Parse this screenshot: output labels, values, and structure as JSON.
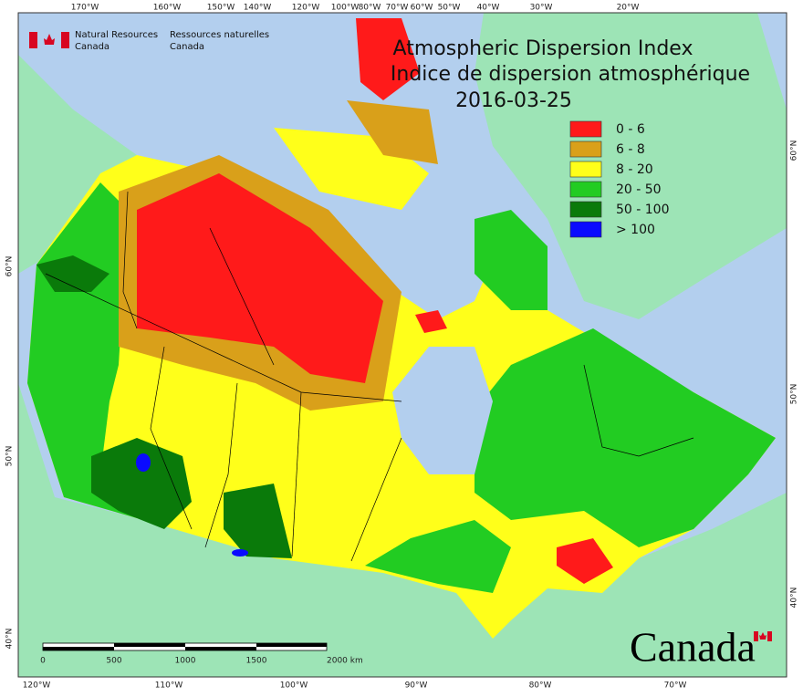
{
  "header": {
    "agency_en": [
      "Natural Resources",
      "Canada"
    ],
    "agency_fr": [
      "Ressources naturelles",
      "Canada"
    ]
  },
  "title": {
    "line1": "Atmospheric Dispersion Index",
    "line2": "Indice de dispersion atmosphérique",
    "date": "2016-03-25"
  },
  "legend": {
    "items": [
      {
        "label": "0 - 6",
        "color": "#ff1a1a"
      },
      {
        "label": "6 - 8",
        "color": "#d9a01a"
      },
      {
        "label": "8 - 20",
        "color": "#ffff1a"
      },
      {
        "label": "20 - 50",
        "color": "#22cc22"
      },
      {
        "label": "50 - 100",
        "color": "#0a7a0a"
      },
      {
        "label": "> 100",
        "color": "#0a0aff"
      }
    ]
  },
  "graticule": {
    "top": [
      "170°W",
      "160°W",
      "150°W",
      "140°W",
      "120°W",
      "100°W",
      "80°W",
      "70°W",
      "60°W",
      "50°W",
      "40°W",
      "30°W",
      "20°W"
    ],
    "bottom": [
      "120°W",
      "110°W",
      "100°W",
      "90°W",
      "80°W",
      "70°W"
    ],
    "left": [
      "60°N",
      "50°N",
      "40°N"
    ],
    "right": [
      "60°N",
      "50°N",
      "40°N"
    ]
  },
  "scale_bar": {
    "labels": [
      "0",
      "500",
      "1000",
      "1500",
      "2000 km"
    ]
  },
  "wordmark": "Canada"
}
